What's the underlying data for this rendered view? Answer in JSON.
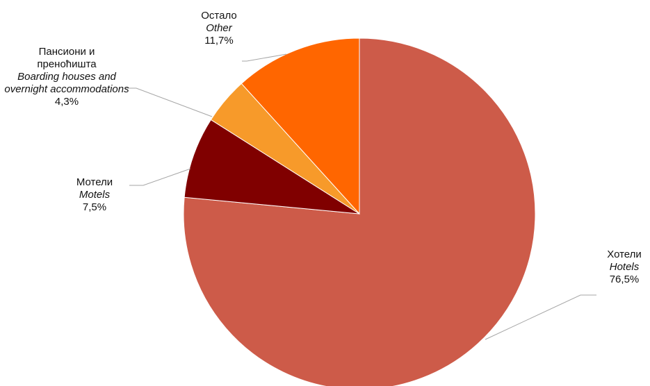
{
  "chart_data": {
    "type": "pie",
    "slices": [
      {
        "label_sr": "Хотели",
        "label_en": "Hotels",
        "value": 76.5,
        "value_label": "76,5%",
        "color": "#CD5B49"
      },
      {
        "label_sr": "Мотели",
        "label_en": "Motels",
        "value": 7.5,
        "value_label": "7,5%",
        "color": "#800000"
      },
      {
        "label_sr": "Пансиони и преноћишта",
        "label_en": "Boarding houses and overnight accommodations",
        "value": 4.3,
        "value_label": "4,3%",
        "color": "#F79A2A"
      },
      {
        "label_sr": "Остало",
        "label_en": "Other",
        "value": 11.7,
        "value_label": "11,7%",
        "color": "#FF6600"
      }
    ],
    "start_angle": "12 o'clock",
    "direction": "clockwise"
  }
}
